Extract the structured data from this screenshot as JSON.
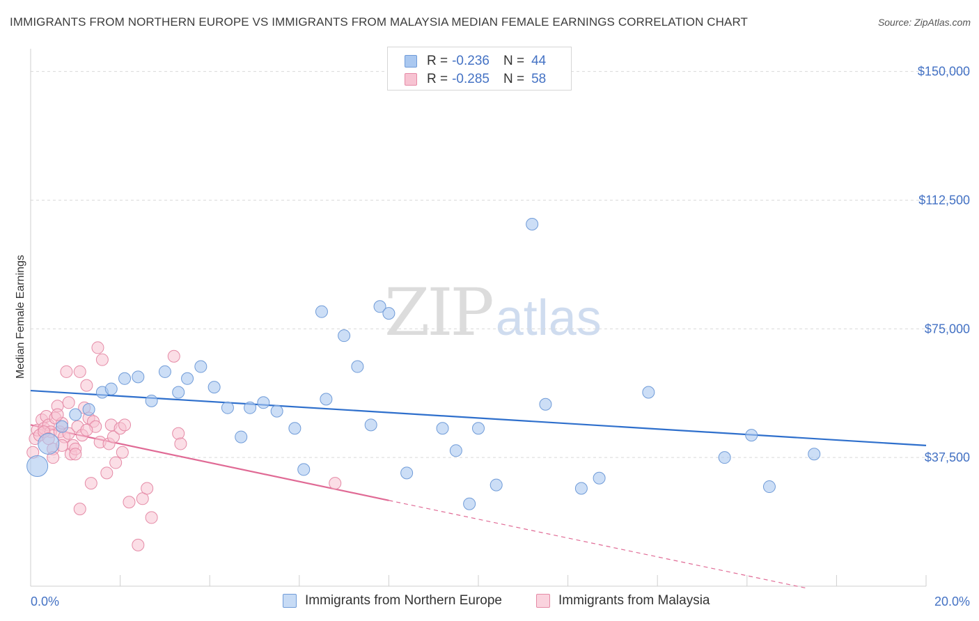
{
  "title": "IMMIGRANTS FROM NORTHERN EUROPE VS IMMIGRANTS FROM MALAYSIA MEDIAN FEMALE EARNINGS CORRELATION CHART",
  "source": "Source: ZipAtlas.com",
  "watermark": {
    "zip": "ZIP",
    "atlas": "atlas"
  },
  "legend_top": {
    "rows": [
      {
        "r_label": "R =",
        "r_value": "-0.236",
        "n_label": "N =",
        "n_value": "44",
        "color": "#aac8f0",
        "stroke": "#6f9bd8"
      },
      {
        "r_label": "R =",
        "r_value": "-0.285",
        "n_label": "N =",
        "n_value": "58",
        "color": "#f7c3d2",
        "stroke": "#e58aa6"
      }
    ]
  },
  "bottom_legend": {
    "series_a": "Immigrants from Northern Europe",
    "series_b": "Immigrants from Malaysia"
  },
  "colors": {
    "blue_fill": "#aac8f0",
    "blue_stroke": "#6f9bd8",
    "blue_line": "#2e6fcc",
    "pink_fill": "#f7c3d2",
    "pink_stroke": "#e58aa6",
    "pink_line": "#e06a95",
    "axis_text": "#4472c4",
    "grid": "#d9d9d9"
  },
  "chart_data": {
    "type": "scatter",
    "title": "IMMIGRANTS FROM NORTHERN EUROPE VS IMMIGRANTS FROM MALAYSIA MEDIAN FEMALE EARNINGS CORRELATION CHART",
    "xlabel": "",
    "ylabel": "Median Female Earnings",
    "xlim": [
      0,
      20
    ],
    "ylim": [
      0,
      155000
    ],
    "x_tick_labels": [
      "0.0%",
      "20.0%"
    ],
    "y_ticks": [
      37500,
      75000,
      112500,
      150000
    ],
    "y_tick_labels": [
      "$37,500",
      "$75,000",
      "$112,500",
      "$150,000"
    ],
    "grid": true,
    "legend": "top-center",
    "series": [
      {
        "name": "Immigrants from Northern Europe",
        "r": -0.236,
        "n": 44,
        "trend": {
          "x": [
            0,
            20
          ],
          "y": [
            57000,
            41000
          ]
        },
        "points": [
          {
            "x": 0.15,
            "y": 35000,
            "big": true
          },
          {
            "x": 0.4,
            "y": 41500,
            "big": true
          },
          {
            "x": 0.7,
            "y": 46500
          },
          {
            "x": 1.0,
            "y": 50000
          },
          {
            "x": 1.3,
            "y": 51500
          },
          {
            "x": 1.6,
            "y": 56500
          },
          {
            "x": 1.8,
            "y": 57500
          },
          {
            "x": 2.1,
            "y": 60500
          },
          {
            "x": 2.4,
            "y": 61000
          },
          {
            "x": 2.7,
            "y": 54000
          },
          {
            "x": 3.0,
            "y": 62500
          },
          {
            "x": 3.3,
            "y": 56500
          },
          {
            "x": 3.5,
            "y": 60500
          },
          {
            "x": 3.8,
            "y": 64000
          },
          {
            "x": 4.1,
            "y": 58000
          },
          {
            "x": 4.4,
            "y": 52000
          },
          {
            "x": 4.7,
            "y": 43500
          },
          {
            "x": 4.9,
            "y": 52000
          },
          {
            "x": 5.2,
            "y": 53500
          },
          {
            "x": 5.5,
            "y": 51000
          },
          {
            "x": 5.9,
            "y": 46000
          },
          {
            "x": 6.1,
            "y": 34000
          },
          {
            "x": 6.5,
            "y": 80000
          },
          {
            "x": 6.6,
            "y": 54500
          },
          {
            "x": 7.0,
            "y": 73000
          },
          {
            "x": 7.3,
            "y": 64000
          },
          {
            "x": 7.6,
            "y": 47000
          },
          {
            "x": 7.8,
            "y": 81500
          },
          {
            "x": 8.0,
            "y": 79500
          },
          {
            "x": 8.4,
            "y": 33000
          },
          {
            "x": 9.2,
            "y": 46000
          },
          {
            "x": 9.5,
            "y": 39500
          },
          {
            "x": 9.8,
            "y": 24000
          },
          {
            "x": 10.0,
            "y": 46000
          },
          {
            "x": 10.4,
            "y": 29500
          },
          {
            "x": 11.2,
            "y": 105500
          },
          {
            "x": 11.5,
            "y": 53000
          },
          {
            "x": 12.3,
            "y": 28500
          },
          {
            "x": 12.7,
            "y": 31500
          },
          {
            "x": 13.8,
            "y": 56500
          },
          {
            "x": 15.5,
            "y": 37500
          },
          {
            "x": 16.1,
            "y": 44000
          },
          {
            "x": 16.5,
            "y": 29000
          },
          {
            "x": 17.5,
            "y": 38500
          }
        ]
      },
      {
        "name": "Immigrants from Malaysia",
        "r": -0.285,
        "n": 58,
        "trend": {
          "x": [
            0,
            8
          ],
          "y": [
            47000,
            25000
          ]
        },
        "trend_dashed": {
          "x": [
            8,
            17.3
          ],
          "y": [
            25000,
            -500
          ]
        },
        "points": [
          {
            "x": 0.05,
            "y": 39000
          },
          {
            "x": 0.1,
            "y": 43000
          },
          {
            "x": 0.15,
            "y": 45500
          },
          {
            "x": 0.2,
            "y": 44000
          },
          {
            "x": 0.25,
            "y": 48500
          },
          {
            "x": 0.3,
            "y": 46000
          },
          {
            "x": 0.35,
            "y": 49500
          },
          {
            "x": 0.4,
            "y": 47000
          },
          {
            "x": 0.45,
            "y": 45000
          },
          {
            "x": 0.5,
            "y": 40000
          },
          {
            "x": 0.5,
            "y": 37500
          },
          {
            "x": 0.55,
            "y": 49000
          },
          {
            "x": 0.6,
            "y": 52500
          },
          {
            "x": 0.65,
            "y": 45000
          },
          {
            "x": 0.7,
            "y": 47500
          },
          {
            "x": 0.75,
            "y": 43500
          },
          {
            "x": 0.8,
            "y": 62500
          },
          {
            "x": 0.85,
            "y": 44500
          },
          {
            "x": 0.85,
            "y": 53500
          },
          {
            "x": 0.9,
            "y": 38500
          },
          {
            "x": 0.95,
            "y": 41000
          },
          {
            "x": 1.0,
            "y": 40000
          },
          {
            "x": 1.05,
            "y": 46500
          },
          {
            "x": 1.1,
            "y": 62500
          },
          {
            "x": 1.15,
            "y": 44000
          },
          {
            "x": 1.2,
            "y": 52000
          },
          {
            "x": 1.25,
            "y": 58500
          },
          {
            "x": 1.3,
            "y": 49000
          },
          {
            "x": 1.35,
            "y": 30000
          },
          {
            "x": 1.4,
            "y": 48000
          },
          {
            "x": 1.45,
            "y": 46500
          },
          {
            "x": 1.5,
            "y": 69500
          },
          {
            "x": 1.55,
            "y": 42000
          },
          {
            "x": 1.6,
            "y": 66000
          },
          {
            "x": 1.7,
            "y": 33000
          },
          {
            "x": 1.75,
            "y": 41500
          },
          {
            "x": 1.8,
            "y": 47000
          },
          {
            "x": 1.85,
            "y": 43500
          },
          {
            "x": 1.9,
            "y": 36000
          },
          {
            "x": 2.0,
            "y": 46000
          },
          {
            "x": 2.05,
            "y": 39000
          },
          {
            "x": 2.1,
            "y": 47000
          },
          {
            "x": 2.2,
            "y": 24500
          },
          {
            "x": 2.4,
            "y": 12000
          },
          {
            "x": 2.5,
            "y": 25500
          },
          {
            "x": 2.6,
            "y": 28500
          },
          {
            "x": 2.7,
            "y": 20000
          },
          {
            "x": 3.2,
            "y": 67000
          },
          {
            "x": 3.3,
            "y": 44500
          },
          {
            "x": 3.35,
            "y": 41500
          },
          {
            "x": 1.1,
            "y": 22500
          },
          {
            "x": 1.0,
            "y": 38500
          },
          {
            "x": 0.3,
            "y": 45000
          },
          {
            "x": 0.6,
            "y": 50000
          },
          {
            "x": 0.4,
            "y": 43000
          },
          {
            "x": 0.7,
            "y": 41000
          },
          {
            "x": 1.25,
            "y": 45500
          },
          {
            "x": 6.8,
            "y": 30000
          }
        ]
      }
    ]
  }
}
